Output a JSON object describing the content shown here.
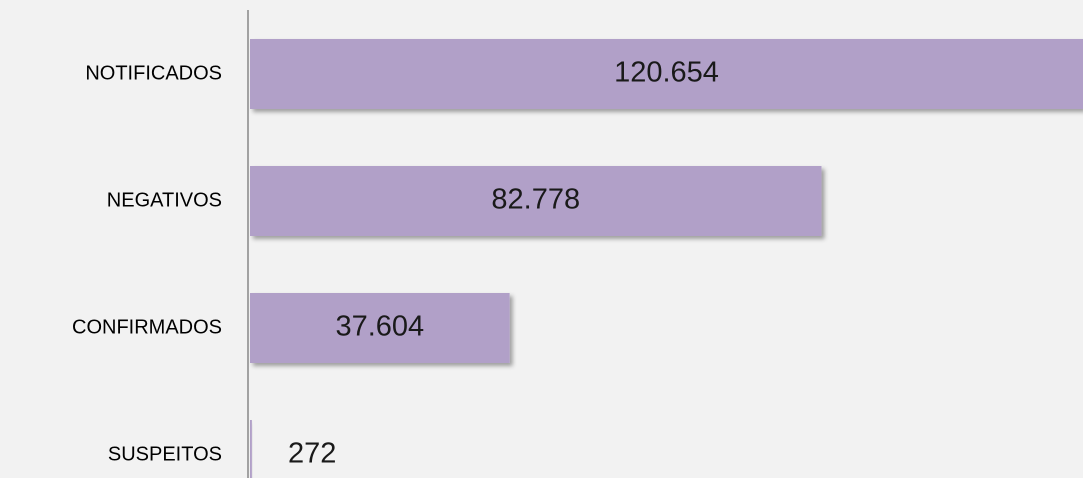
{
  "chart_data": {
    "type": "bar",
    "orientation": "horizontal",
    "categories": [
      "NOTIFICADOS",
      "NEGATIVOS",
      "CONFIRMADOS",
      "SUSPEITOS"
    ],
    "values": [
      120654,
      82778,
      37604,
      272
    ],
    "value_labels": [
      "120.654",
      "82.778",
      "37.604",
      "272"
    ],
    "color": "#b1a0c8"
  }
}
